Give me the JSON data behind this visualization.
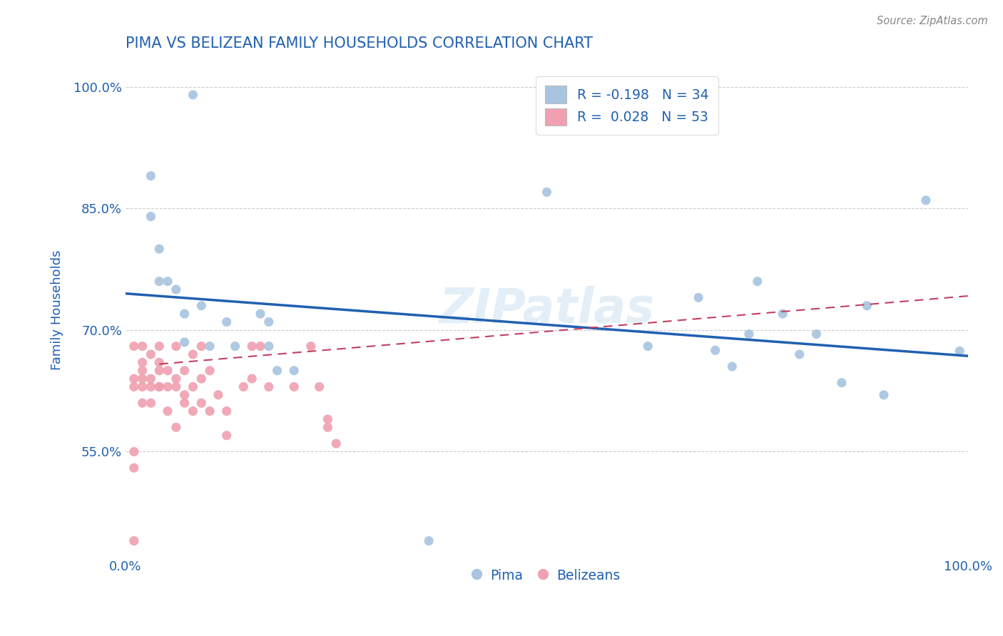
{
  "title": "PIMA VS BELIZEAN FAMILY HOUSEHOLDS CORRELATION CHART",
  "source": "Source: ZipAtlas.com",
  "xlabel": "",
  "ylabel": "Family Households",
  "xlim": [
    0.0,
    1.0
  ],
  "ylim": [
    0.42,
    1.03
  ],
  "yticks": [
    0.55,
    0.7,
    0.85,
    1.0
  ],
  "ytick_labels": [
    "55.0%",
    "70.0%",
    "85.0%",
    "100.0%"
  ],
  "xticks": [
    0.0,
    0.2,
    0.4,
    0.6,
    0.8,
    1.0
  ],
  "xtick_labels": [
    "0.0%",
    "",
    "",
    "",
    "",
    "100.0%"
  ],
  "pima_color": "#a8c4e0",
  "belizean_color": "#f0a0b0",
  "pima_line_color": "#2060b0",
  "belizean_line_color": "#c04060",
  "r_pima": -0.198,
  "n_pima": 34,
  "r_belizean": 0.028,
  "n_belizean": 53,
  "watermark": "ZIPatlas",
  "title_color": "#2060b0",
  "axis_label_color": "#2060b0",
  "tick_color": "#2060b0",
  "stat_color": "#2060b0",
  "pima_line_x0": 0.0,
  "pima_line_y0": 0.745,
  "pima_line_x1": 1.0,
  "pima_line_y1": 0.668,
  "belizean_line_x0": 0.04,
  "belizean_line_y0": 0.658,
  "belizean_line_x1": 1.0,
  "belizean_line_y1": 0.742,
  "pima_x": [
    0.08,
    0.03,
    0.04,
    0.04,
    0.05,
    0.06,
    0.07,
    0.09,
    0.1,
    0.12,
    0.13,
    0.16,
    0.17,
    0.17,
    0.18,
    0.2,
    0.5,
    0.62,
    0.68,
    0.7,
    0.72,
    0.74,
    0.75,
    0.78,
    0.8,
    0.82,
    0.85,
    0.88,
    0.9,
    0.95,
    0.99,
    0.36,
    0.03,
    0.07
  ],
  "pima_y": [
    0.99,
    0.89,
    0.8,
    0.76,
    0.76,
    0.75,
    0.72,
    0.73,
    0.68,
    0.71,
    0.68,
    0.72,
    0.71,
    0.68,
    0.65,
    0.65,
    0.87,
    0.68,
    0.74,
    0.675,
    0.655,
    0.695,
    0.76,
    0.72,
    0.67,
    0.695,
    0.635,
    0.73,
    0.62,
    0.86,
    0.674,
    0.44,
    0.84,
    0.685
  ],
  "belizean_x": [
    0.01,
    0.01,
    0.01,
    0.01,
    0.01,
    0.02,
    0.02,
    0.02,
    0.02,
    0.02,
    0.02,
    0.03,
    0.03,
    0.03,
    0.03,
    0.04,
    0.04,
    0.04,
    0.04,
    0.04,
    0.05,
    0.05,
    0.05,
    0.06,
    0.06,
    0.06,
    0.06,
    0.07,
    0.07,
    0.07,
    0.08,
    0.08,
    0.08,
    0.09,
    0.09,
    0.09,
    0.1,
    0.1,
    0.11,
    0.12,
    0.12,
    0.14,
    0.15,
    0.15,
    0.16,
    0.17,
    0.2,
    0.22,
    0.23,
    0.24,
    0.24,
    0.25,
    0.01
  ],
  "belizean_y": [
    0.44,
    0.53,
    0.55,
    0.63,
    0.64,
    0.61,
    0.63,
    0.64,
    0.65,
    0.66,
    0.68,
    0.61,
    0.63,
    0.64,
    0.67,
    0.63,
    0.63,
    0.65,
    0.66,
    0.68,
    0.6,
    0.63,
    0.65,
    0.58,
    0.63,
    0.64,
    0.68,
    0.61,
    0.62,
    0.65,
    0.6,
    0.63,
    0.67,
    0.61,
    0.64,
    0.68,
    0.6,
    0.65,
    0.62,
    0.57,
    0.6,
    0.63,
    0.64,
    0.68,
    0.68,
    0.63,
    0.63,
    0.68,
    0.63,
    0.59,
    0.58,
    0.56,
    0.68
  ]
}
